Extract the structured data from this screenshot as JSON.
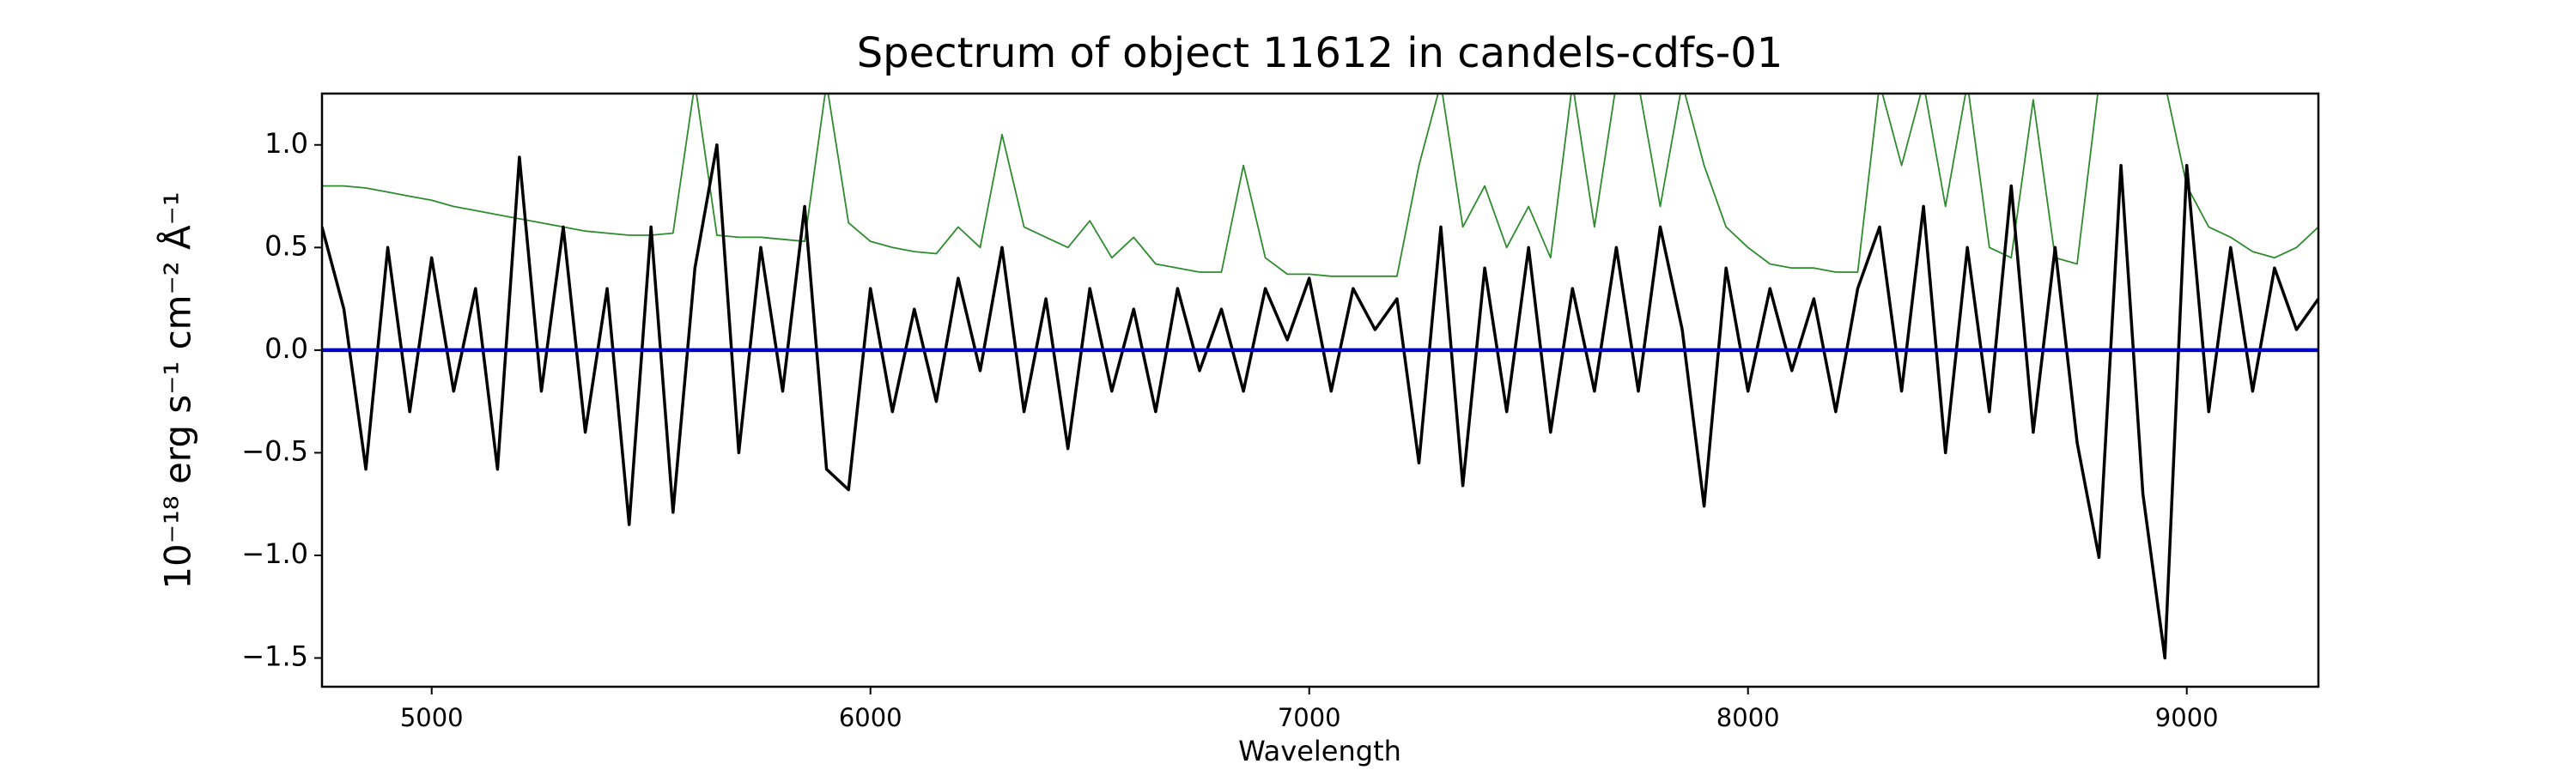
{
  "chart_data": {
    "type": "line",
    "title": "Spectrum of object 11612 in candels-cdfs-01",
    "x_label": "Wavelength",
    "y_label": "10⁻¹⁸ erg s⁻¹ cm⁻² Å⁻¹",
    "xlim": [
      4750,
      9300
    ],
    "ylim": [
      -1.64,
      1.25
    ],
    "xticks": [
      5000,
      6000,
      7000,
      8000,
      9000
    ],
    "yticks": [
      {
        "value": -1.5,
        "label": "−1.5"
      },
      {
        "value": -1.0,
        "label": "−1.0"
      },
      {
        "value": -0.5,
        "label": "−0.5"
      },
      {
        "value": 0.0,
        "label": "0.0"
      },
      {
        "value": 0.5,
        "label": "0.5"
      },
      {
        "value": 1.0,
        "label": "1.0"
      }
    ],
    "x": [
      4750,
      4800,
      4850,
      4900,
      4950,
      5000,
      5050,
      5100,
      5150,
      5200,
      5250,
      5300,
      5350,
      5400,
      5450,
      5500,
      5550,
      5600,
      5650,
      5700,
      5750,
      5800,
      5850,
      5900,
      5950,
      6000,
      6050,
      6100,
      6150,
      6200,
      6250,
      6300,
      6350,
      6400,
      6450,
      6500,
      6550,
      6600,
      6650,
      6700,
      6750,
      6800,
      6850,
      6900,
      6950,
      7000,
      7050,
      7100,
      7150,
      7200,
      7250,
      7300,
      7350,
      7400,
      7450,
      7500,
      7550,
      7600,
      7650,
      7700,
      7750,
      7800,
      7850,
      7900,
      7950,
      8000,
      8050,
      8100,
      8150,
      8200,
      8250,
      8300,
      8350,
      8400,
      8450,
      8500,
      8550,
      8600,
      8650,
      8700,
      8750,
      8800,
      8850,
      8900,
      8950,
      9000,
      9050,
      9100,
      9150,
      9200,
      9250,
      9300
    ],
    "series": [
      {
        "color": "#2e8b2e",
        "width": 1.8,
        "values": [
          0.8,
          0.8,
          0.79,
          0.77,
          0.75,
          0.73,
          0.7,
          0.68,
          0.66,
          0.64,
          0.62,
          0.6,
          0.58,
          0.57,
          0.56,
          0.56,
          0.57,
          1.3,
          0.56,
          0.55,
          0.55,
          0.54,
          0.53,
          1.3,
          0.62,
          0.53,
          0.5,
          0.48,
          0.47,
          0.6,
          0.5,
          1.05,
          0.6,
          0.55,
          0.5,
          0.63,
          0.45,
          0.55,
          0.42,
          0.4,
          0.38,
          0.38,
          0.9,
          0.45,
          0.37,
          0.37,
          0.36,
          0.36,
          0.36,
          0.36,
          0.9,
          1.3,
          0.6,
          0.8,
          0.5,
          0.7,
          0.45,
          1.3,
          0.6,
          1.3,
          1.3,
          0.7,
          1.3,
          0.9,
          0.6,
          0.5,
          0.42,
          0.4,
          0.4,
          0.38,
          0.38,
          1.3,
          0.9,
          1.3,
          0.7,
          1.3,
          0.5,
          0.45,
          1.22,
          0.45,
          0.42,
          1.3,
          1.3,
          1.3,
          1.3,
          0.8,
          0.6,
          0.55,
          0.48,
          0.45,
          0.5,
          0.6
        ]
      },
      {
        "color": "#000000",
        "width": 3.5,
        "values": [
          0.6,
          0.2,
          -0.58,
          0.5,
          -0.3,
          0.45,
          -0.2,
          0.3,
          -0.58,
          0.94,
          -0.2,
          0.6,
          -0.4,
          0.3,
          -0.85,
          0.6,
          -0.79,
          0.4,
          1.0,
          -0.5,
          0.5,
          -0.2,
          0.7,
          -0.58,
          -0.68,
          0.3,
          -0.3,
          0.2,
          -0.25,
          0.35,
          -0.1,
          0.5,
          -0.3,
          0.25,
          -0.48,
          0.3,
          -0.2,
          0.2,
          -0.3,
          0.3,
          -0.1,
          0.2,
          -0.2,
          0.3,
          0.05,
          0.35,
          -0.2,
          0.3,
          0.1,
          0.25,
          -0.55,
          0.6,
          -0.66,
          0.4,
          -0.3,
          0.5,
          -0.4,
          0.3,
          -0.2,
          0.5,
          -0.2,
          0.6,
          0.1,
          -0.76,
          0.4,
          -0.2,
          0.3,
          -0.1,
          0.25,
          -0.3,
          0.3,
          0.6,
          -0.2,
          0.7,
          -0.5,
          0.5,
          -0.3,
          0.8,
          -0.4,
          0.5,
          -0.45,
          -1.01,
          0.9,
          -0.7,
          -1.5,
          0.9,
          -0.3,
          0.5,
          -0.2,
          0.4,
          0.1,
          0.25
        ]
      },
      {
        "color": "#0000cc",
        "width": 4.5,
        "values": [
          0,
          0,
          0,
          0,
          0,
          0,
          0,
          0,
          0,
          0,
          0,
          0,
          0,
          0,
          0,
          0,
          0,
          0,
          0,
          0,
          0,
          0,
          0,
          0,
          0,
          0,
          0,
          0,
          0,
          0,
          0,
          0,
          0,
          0,
          0,
          0,
          0,
          0,
          0,
          0,
          0,
          0,
          0,
          0,
          0,
          0,
          0,
          0,
          0,
          0,
          0,
          0,
          0,
          0,
          0,
          0,
          0,
          0,
          0,
          0,
          0,
          0,
          0,
          0,
          0,
          0,
          0,
          0,
          0,
          0,
          0,
          0,
          0,
          0,
          0,
          0,
          0,
          0,
          0,
          0,
          0,
          0,
          0,
          0,
          0,
          0,
          0,
          0,
          0,
          0,
          0,
          0
        ]
      }
    ]
  }
}
